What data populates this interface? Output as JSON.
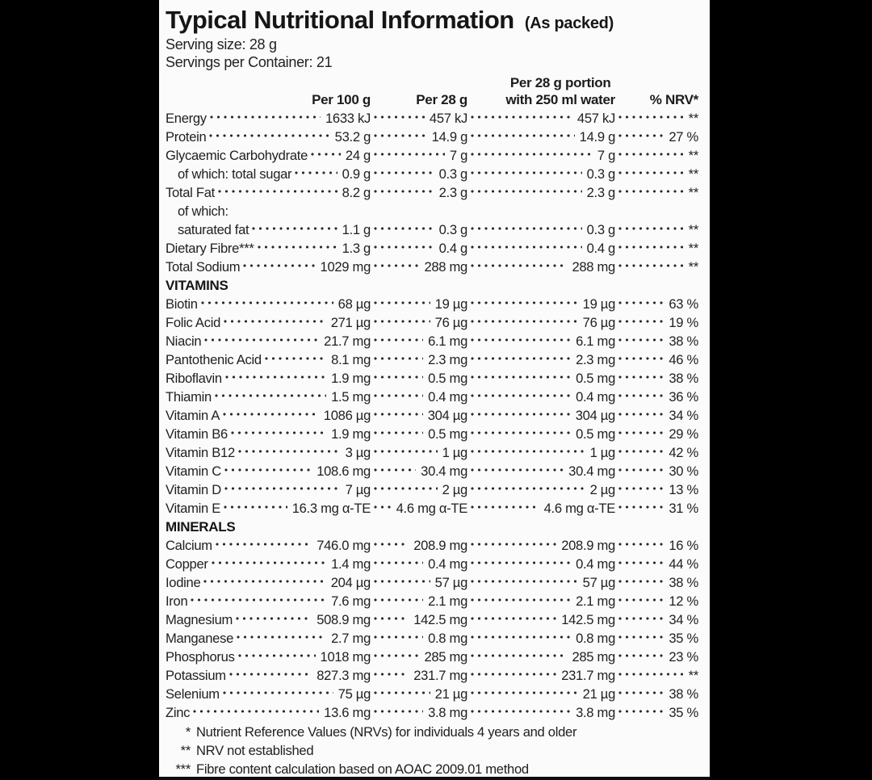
{
  "header": {
    "title": "Typical Nutritional Information",
    "subtitle": "(As packed)",
    "serving_size": "Serving size: 28 g",
    "servings_per_container": "Servings per Container: 21"
  },
  "table": {
    "columns": {
      "per100": "Per 100 g",
      "per28": "Per 28 g",
      "portion_line1": "Per 28 g portion",
      "portion_line2": "with 250 ml water",
      "nrv": "% NRV*"
    },
    "rows": [
      {
        "type": "item",
        "label": "Energy",
        "per100": "1633 kJ",
        "per28": "457 kJ",
        "portion": "457 kJ",
        "nrv": "**"
      },
      {
        "type": "item",
        "label": "Protein",
        "per100": "53.2 g",
        "per28": "14.9 g",
        "portion": "14.9 g",
        "nrv": "27 %"
      },
      {
        "type": "item",
        "label": "Glycaemic Carbohydrate",
        "per100": "24 g",
        "per28": "7 g",
        "portion": "7 g",
        "nrv": "**"
      },
      {
        "type": "item",
        "label": "of which: total sugar",
        "indent": true,
        "per100": "0.9 g",
        "per28": "0.3 g",
        "portion": "0.3 g",
        "nrv": "**"
      },
      {
        "type": "item",
        "label": "Total Fat",
        "per100": "8.2 g",
        "per28": "2.3 g",
        "portion": "2.3 g",
        "nrv": "**"
      },
      {
        "type": "label-only",
        "label": "of which:",
        "indent": true
      },
      {
        "type": "item",
        "label": "saturated fat",
        "indent": true,
        "per100": "1.1 g",
        "per28": "0.3 g",
        "portion": "0.3 g",
        "nrv": "**"
      },
      {
        "type": "item",
        "label": "Dietary Fibre***",
        "per100": "1.3 g",
        "per28": "0.4 g",
        "portion": "0.4 g",
        "nrv": "**"
      },
      {
        "type": "item",
        "label": "Total Sodium",
        "per100": "1029 mg",
        "per28": "288 mg",
        "portion": "288 mg",
        "nrv": "**"
      },
      {
        "type": "section",
        "label": "VITAMINS"
      },
      {
        "type": "item",
        "label": "Biotin",
        "per100": "68 µg",
        "per28": "19 µg",
        "portion": "19 µg",
        "nrv": "63 %"
      },
      {
        "type": "item",
        "label": "Folic Acid",
        "per100": "271 µg",
        "per28": "76 µg",
        "portion": "76 µg",
        "nrv": "19 %"
      },
      {
        "type": "item",
        "label": "Niacin",
        "per100": "21.7 mg",
        "per28": "6.1 mg",
        "portion": "6.1 mg",
        "nrv": "38 %"
      },
      {
        "type": "item",
        "label": "Pantothenic Acid",
        "per100": "8.1 mg",
        "per28": "2.3 mg",
        "portion": "2.3 mg",
        "nrv": "46 %"
      },
      {
        "type": "item",
        "label": "Riboflavin",
        "per100": "1.9 mg",
        "per28": "0.5 mg",
        "portion": "0.5 mg",
        "nrv": "38 %"
      },
      {
        "type": "item",
        "label": "Thiamin",
        "per100": "1.5 mg",
        "per28": "0.4 mg",
        "portion": "0.4 mg",
        "nrv": "36 %"
      },
      {
        "type": "item",
        "label": "Vitamin A",
        "per100": "1086 µg",
        "per28": "304 µg",
        "portion": "304 µg",
        "nrv": "34 %"
      },
      {
        "type": "item",
        "label": "Vitamin B6",
        "per100": "1.9 mg",
        "per28": "0.5 mg",
        "portion": "0.5 mg",
        "nrv": "29 %"
      },
      {
        "type": "item",
        "label": "Vitamin B12",
        "per100": "3 µg",
        "per28": "1 µg",
        "portion": "1 µg",
        "nrv": "42 %"
      },
      {
        "type": "item",
        "label": "Vitamin C",
        "per100": "108.6 mg",
        "per28": "30.4 mg",
        "portion": "30.4 mg",
        "nrv": "30 %"
      },
      {
        "type": "item",
        "label": "Vitamin D",
        "per100": "7 µg",
        "per28": "2 µg",
        "portion": "2 µg",
        "nrv": "13 %"
      },
      {
        "type": "item",
        "label": "Vitamin E",
        "per100": "16.3 mg α-TE",
        "per28": "4.6 mg α-TE",
        "portion": "4.6 mg α-TE",
        "nrv": "31 %"
      },
      {
        "type": "section",
        "label": "MINERALS"
      },
      {
        "type": "item",
        "label": "Calcium",
        "per100": "746.0 mg",
        "per28": "208.9 mg",
        "portion": "208.9 mg",
        "nrv": "16 %"
      },
      {
        "type": "item",
        "label": "Copper",
        "per100": "1.4 mg",
        "per28": "0.4 mg",
        "portion": "0.4 mg",
        "nrv": "44 %"
      },
      {
        "type": "item",
        "label": "Iodine",
        "per100": "204 µg",
        "per28": "57 µg",
        "portion": "57 µg",
        "nrv": "38 %"
      },
      {
        "type": "item",
        "label": "Iron",
        "per100": "7.6 mg",
        "per28": "2.1 mg",
        "portion": "2.1 mg",
        "nrv": "12 %"
      },
      {
        "type": "item",
        "label": "Magnesium",
        "per100": "508.9 mg",
        "per28": "142.5 mg",
        "portion": "142.5 mg",
        "nrv": "34 %"
      },
      {
        "type": "item",
        "label": "Manganese",
        "per100": "2.7 mg",
        "per28": "0.8 mg",
        "portion": "0.8 mg",
        "nrv": "35 %"
      },
      {
        "type": "item",
        "label": "Phosphorus",
        "per100": "1018 mg",
        "per28": "285 mg",
        "portion": "285 mg",
        "nrv": "23 %"
      },
      {
        "type": "item",
        "label": "Potassium",
        "per100": "827.3 mg",
        "per28": "231.7 mg",
        "portion": "231.7 mg",
        "nrv": "**"
      },
      {
        "type": "item",
        "label": "Selenium",
        "per100": "75 µg",
        "per28": "21 µg",
        "portion": "21 µg",
        "nrv": "38 %"
      },
      {
        "type": "item",
        "label": "Zinc",
        "per100": "13.6 mg",
        "per28": "3.8 mg",
        "portion": "3.8 mg",
        "nrv": "35 %"
      }
    ]
  },
  "footnotes": [
    {
      "marker": "*",
      "text": "Nutrient Reference Values (NRVs) for individuals 4 years and older"
    },
    {
      "marker": "**",
      "text": "NRV not established"
    },
    {
      "marker": "***",
      "text": "Fibre content calculation based on AOAC 2009.01 method"
    }
  ],
  "colors": {
    "background": "#000000",
    "panel": "#fbfbfb",
    "text": "#212121"
  }
}
